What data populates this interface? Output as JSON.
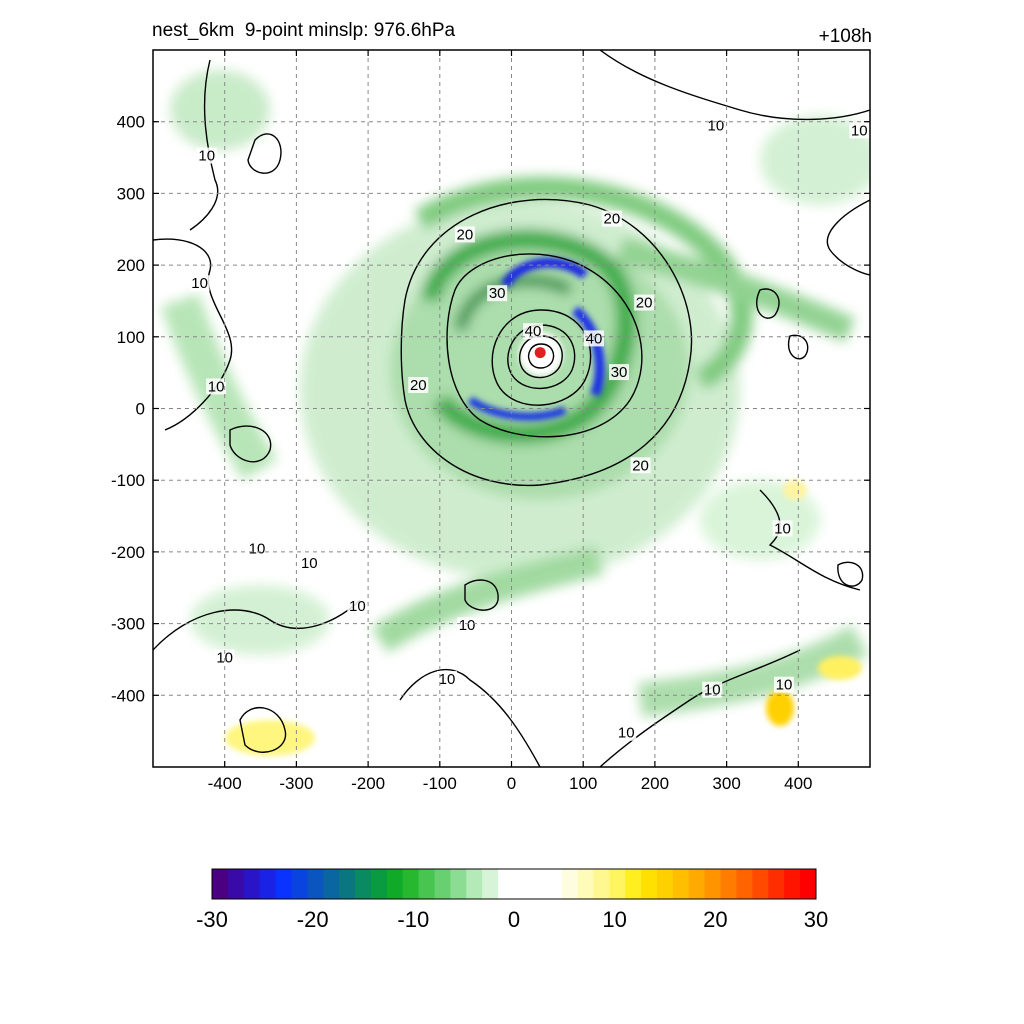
{
  "header": {
    "title": "nest_6km  9-point minslp: 976.6hPa",
    "time_label": "+108h"
  },
  "colors": {
    "storm_center": "#e02020",
    "contour": "#000000",
    "grid": "#888888"
  },
  "chart_data": {
    "type": "heatmap",
    "xlim": [
      -500,
      500
    ],
    "ylim": [
      -500,
      500
    ],
    "x_ticks": [
      -400,
      -300,
      -200,
      -100,
      0,
      100,
      200,
      300,
      400
    ],
    "y_ticks": [
      400,
      300,
      200,
      100,
      0,
      -100,
      -200,
      -300,
      -400
    ],
    "grid": true,
    "storm_center": {
      "x": 40,
      "y": 78
    },
    "contour_levels": [
      10,
      20,
      30,
      40
    ],
    "contour_labels": [
      {
        "text": "10",
        "x": 285,
        "y": 392
      },
      {
        "text": "10",
        "x": 485,
        "y": 385
      },
      {
        "text": "10",
        "x": -425,
        "y": 350
      },
      {
        "text": "10",
        "x": -435,
        "y": 172
      },
      {
        "text": "10",
        "x": -412,
        "y": 28
      },
      {
        "text": "20",
        "x": -65,
        "y": 240
      },
      {
        "text": "20",
        "x": 140,
        "y": 262
      },
      {
        "text": "20",
        "x": 185,
        "y": 145
      },
      {
        "text": "30",
        "x": -20,
        "y": 158
      },
      {
        "text": "40",
        "x": 30,
        "y": 105
      },
      {
        "text": "40",
        "x": 115,
        "y": 95
      },
      {
        "text": "30",
        "x": 150,
        "y": 48
      },
      {
        "text": "20",
        "x": -130,
        "y": 30
      },
      {
        "text": "20",
        "x": 180,
        "y": -82
      },
      {
        "text": "10",
        "x": 378,
        "y": -170
      },
      {
        "text": "10",
        "x": -355,
        "y": -198
      },
      {
        "text": "10",
        "x": -282,
        "y": -218
      },
      {
        "text": "10",
        "x": -215,
        "y": -278
      },
      {
        "text": "10",
        "x": -62,
        "y": -305
      },
      {
        "text": "10",
        "x": -400,
        "y": -350
      },
      {
        "text": "10",
        "x": -90,
        "y": -380
      },
      {
        "text": "10",
        "x": 280,
        "y": -395
      },
      {
        "text": "10",
        "x": 380,
        "y": -388
      },
      {
        "text": "10",
        "x": 160,
        "y": -455
      }
    ],
    "colorbar": {
      "min": -30,
      "max": 30,
      "ticks": [
        -30,
        -20,
        -10,
        0,
        10,
        20,
        30
      ],
      "colors": [
        "#4b0082",
        "#3a0aa8",
        "#2a14c8",
        "#1a22e6",
        "#0a33ff",
        "#0a44e0",
        "#0a55c0",
        "#0a66a0",
        "#0a7780",
        "#0a8a60",
        "#0a9a40",
        "#10aa28",
        "#28b830",
        "#48c450",
        "#68d070",
        "#8cdc94",
        "#b4eab8",
        "#d8f4d8",
        "#ffffff",
        "#ffffff",
        "#ffffff",
        "#ffffff",
        "#fffde0",
        "#fffbb8",
        "#fff890",
        "#fff560",
        "#ffee20",
        "#ffe000",
        "#ffd000",
        "#ffbe00",
        "#ffaa00",
        "#ff9400",
        "#ff7c00",
        "#ff6400",
        "#ff4a00",
        "#ff2e00",
        "#ff1400",
        "#ff0000"
      ]
    }
  }
}
